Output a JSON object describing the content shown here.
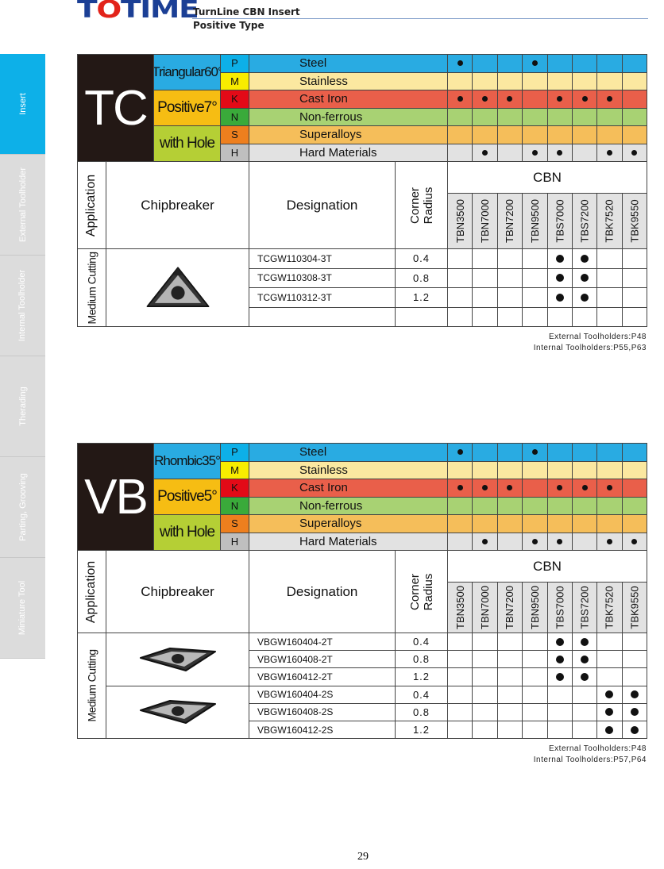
{
  "header": {
    "logo": "TOTIME",
    "title": "TurnLine CBN Insert",
    "subtitle": "Positive Type"
  },
  "sidebar": {
    "items": [
      {
        "label": "Insert",
        "active": true
      },
      {
        "label": "External Toolholder",
        "active": false
      },
      {
        "label": "Internal Toolholder",
        "active": false
      },
      {
        "label": "Therading",
        "active": false
      },
      {
        "label": "Parting, Grooving",
        "active": false
      },
      {
        "label": "Miniature Tool",
        "active": false
      }
    ]
  },
  "materials": [
    {
      "letter": "P",
      "name": "Steel",
      "letter_color": "#0db0e8",
      "row_color": "#29abe2",
      "grades": [
        1,
        0,
        0,
        1,
        0,
        0,
        0,
        0
      ]
    },
    {
      "letter": "M",
      "name": "Stainless",
      "letter_color": "#f8ec00",
      "row_color": "#fbe8a0",
      "grades": [
        0,
        0,
        0,
        0,
        0,
        0,
        0,
        0
      ]
    },
    {
      "letter": "K",
      "name": "Cast  Iron",
      "letter_color": "#e30a17",
      "row_color": "#e95f4a",
      "grades": [
        1,
        1,
        1,
        0,
        1,
        1,
        1,
        0
      ]
    },
    {
      "letter": "N",
      "name": "Non-ferrous",
      "letter_color": "#3aaa3a",
      "row_color": "#a8d273",
      "grades": [
        0,
        0,
        0,
        0,
        0,
        0,
        0,
        0
      ]
    },
    {
      "letter": "S",
      "name": "Superalloys",
      "letter_color": "#ee7f1e",
      "row_color": "#f5be5a",
      "grades": [
        0,
        0,
        0,
        0,
        0,
        0,
        0,
        0
      ]
    },
    {
      "letter": "H",
      "name": "Hard Materials",
      "letter_color": "#bfbfbf",
      "row_color": "#e2e2e2",
      "grades": [
        0,
        1,
        0,
        1,
        1,
        0,
        1,
        1
      ]
    }
  ],
  "columns": {
    "application": "Application",
    "chipbreaker": "Chipbreaker",
    "designation": "Designation",
    "corner_radius": "Corner Radius",
    "cbn": "CBN",
    "grades": [
      "TBN3500",
      "TBN7000",
      "TBN7200",
      "TBN9500",
      "TBS7000",
      "TBS7200",
      "TBK7520",
      "TBK9550"
    ]
  },
  "sections": [
    {
      "code": "TC",
      "shape": "Triangular60°",
      "angle": "Positive7°",
      "hole": "with Hole",
      "application": "Medium Cutting",
      "insert_icon": "triangle-insert",
      "groups": [
        {
          "rows": [
            {
              "designation": "TCGW110304-3T",
              "radius": "0.4",
              "grades": [
                0,
                0,
                0,
                0,
                1,
                1,
                0,
                0
              ]
            },
            {
              "designation": "TCGW110308-3T",
              "radius": "0.8",
              "grades": [
                0,
                0,
                0,
                0,
                1,
                1,
                0,
                0
              ]
            },
            {
              "designation": "TCGW110312-3T",
              "radius": "1.2",
              "grades": [
                0,
                0,
                0,
                0,
                1,
                1,
                0,
                0
              ]
            }
          ]
        }
      ],
      "notes": [
        "External Toolholders:P48",
        "Internal Toolholders:P55,P63"
      ]
    },
    {
      "code": "VB",
      "shape": "Rhombic35°",
      "angle": "Positive5°",
      "hole": "with Hole",
      "application": "Medium Cutting",
      "insert_icon": "rhombic-insert",
      "groups": [
        {
          "rows": [
            {
              "designation": "VBGW160404-2T",
              "radius": "0.4",
              "grades": [
                0,
                0,
                0,
                0,
                1,
                1,
                0,
                0
              ]
            },
            {
              "designation": "VBGW160408-2T",
              "radius": "0.8",
              "grades": [
                0,
                0,
                0,
                0,
                1,
                1,
                0,
                0
              ]
            },
            {
              "designation": "VBGW160412-2T",
              "radius": "1.2",
              "grades": [
                0,
                0,
                0,
                0,
                1,
                1,
                0,
                0
              ]
            }
          ]
        },
        {
          "rows": [
            {
              "designation": "VBGW160404-2S",
              "radius": "0.4",
              "grades": [
                0,
                0,
                0,
                0,
                0,
                0,
                1,
                1
              ]
            },
            {
              "designation": "VBGW160408-2S",
              "radius": "0.8",
              "grades": [
                0,
                0,
                0,
                0,
                0,
                0,
                1,
                1
              ]
            },
            {
              "designation": "VBGW160412-2S",
              "radius": "1.2",
              "grades": [
                0,
                0,
                0,
                0,
                0,
                0,
                1,
                1
              ]
            }
          ]
        }
      ],
      "notes": [
        "External Toolholders:P48",
        "Internal Toolholders:P57,P64"
      ]
    }
  ],
  "page_number": "29"
}
